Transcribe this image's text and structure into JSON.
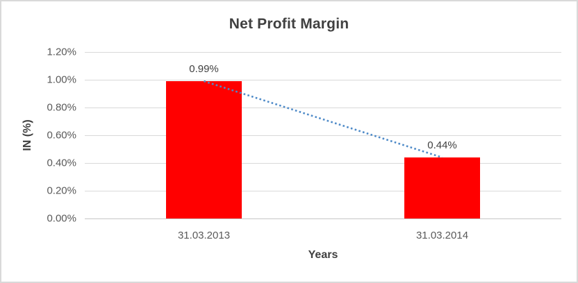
{
  "window": {
    "background": "#FFFFFF",
    "border_color": "#D9D9D9"
  },
  "chart_data": {
    "type": "bar",
    "title": "Net Profit Margin",
    "categories": [
      "31.03.2013",
      "31.03.2014"
    ],
    "values": [
      0.99,
      0.44
    ],
    "data_labels": [
      "0.99%",
      "0.44%"
    ],
    "xlabel": "Years",
    "ylabel": "IN (%)",
    "ylim": [
      0,
      1.2
    ],
    "ytick_labels_top_to_bottom": [
      "1.20%",
      "1.00%",
      "0.80%",
      "0.60%",
      "0.40%",
      "0.20%",
      "0.00%"
    ],
    "grid": true,
    "legend": false,
    "bar_color": "#FF0000",
    "trendline": {
      "type": "linear",
      "style": "dotted",
      "color": "#4E8AC8",
      "start_value": 0.99,
      "end_value": 0.44
    }
  }
}
